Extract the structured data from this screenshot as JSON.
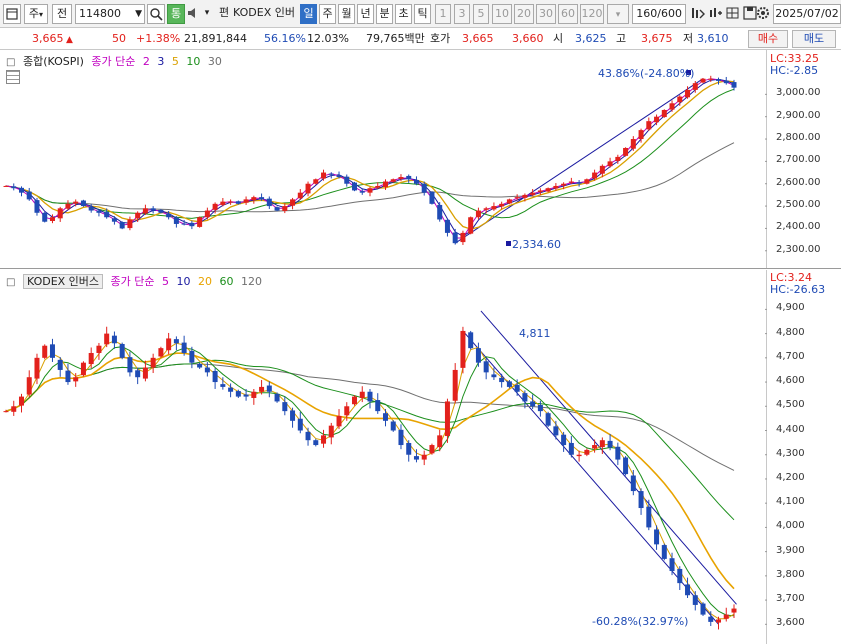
{
  "toolbar": {
    "market": "주",
    "period_type": "전",
    "stock_code": "114800",
    "tong": "통",
    "pyeon": "편",
    "stock_name": "KODEX 인버",
    "periods": [
      "일",
      "주",
      "월",
      "년",
      "분",
      "초",
      "틱"
    ],
    "active_period": "일",
    "intervals": [
      "1",
      "3",
      "5",
      "10",
      "20",
      "30",
      "60",
      "120"
    ],
    "count": "160/600",
    "date": "2025/07/02"
  },
  "quote": {
    "price": "3,665",
    "change_arrow": "▲",
    "change": "50",
    "change_pct": "+1.38%",
    "volume": "21,891,844",
    "ratio1": "56.16%",
    "ratio2": "12.03%",
    "amount": "79,765백만",
    "ask_label": "호가",
    "ask": "3,665",
    "bid": "3,660",
    "open_label": "시",
    "open": "3,625",
    "high_label": "고",
    "high": "3,675",
    "low_label": "저",
    "low": "3,610",
    "buy_label": "매수",
    "sell_label": "매도"
  },
  "panel1": {
    "name": "종합(KOSPI)",
    "ma_label": "종가 단순",
    "ma_periods": [
      "2",
      "3",
      "5",
      "10",
      "30"
    ],
    "lc": "LC:33.25",
    "hc": "HC:-2.85",
    "y_ticks": [
      "3,000.00",
      "2,900.00",
      "2,800.00",
      "2,700.00",
      "2,600.00",
      "2,500.00",
      "2,400.00",
      "2,300.00"
    ],
    "annotation_high": "43.86%(-24.80%)",
    "annotation_low": "2,334.60"
  },
  "panel2": {
    "name": "KODEX 인버스",
    "ma_label": "종가 단순",
    "ma_periods": [
      "5",
      "10",
      "20",
      "60",
      "120"
    ],
    "lc": "LC:3.24",
    "hc": "HC:-26.63",
    "y_ticks": [
      "4,900",
      "4,800",
      "4,700",
      "4,600",
      "4,500",
      "4,400",
      "4,300",
      "4,200",
      "4,100",
      "4,000",
      "3,900",
      "3,800",
      "3,700",
      "3,600"
    ],
    "annotation_high": "4,811",
    "annotation_low": "-60.28%(32.97%)"
  },
  "colors": {
    "up": "#e2211c",
    "down": "#1f4bb4",
    "ma2": "#c000c0",
    "ma3": "#1a1aa0",
    "ma5": "#d9a000",
    "ma10": "#1c8f1c",
    "ma30": "#707070",
    "ma20": "#e8a300",
    "ma60": "#1c8f1c",
    "ma120": "#707070"
  },
  "chart_data": [
    {
      "type": "candlestick",
      "title": "종합(KOSPI)",
      "ylim": [
        2290,
        3100
      ],
      "y_ticks": [
        3000,
        2900,
        2800,
        2700,
        2600,
        2500,
        2400,
        2300
      ],
      "series_close": [
        2590,
        2580,
        2560,
        2530,
        2470,
        2430,
        2450,
        2490,
        2510,
        2520,
        2500,
        2480,
        2470,
        2450,
        2430,
        2400,
        2440,
        2470,
        2490,
        2480,
        2470,
        2450,
        2420,
        2420,
        2410,
        2450,
        2480,
        2510,
        2520,
        2520,
        2510,
        2530,
        2540,
        2530,
        2500,
        2480,
        2500,
        2530,
        2560,
        2600,
        2620,
        2650,
        2640,
        2630,
        2600,
        2570,
        2560,
        2580,
        2590,
        2610,
        2620,
        2630,
        2620,
        2600,
        2560,
        2510,
        2440,
        2380,
        2334,
        2380,
        2450,
        2480,
        2490,
        2500,
        2510,
        2530,
        2540,
        2550,
        2560,
        2570,
        2580,
        2590,
        2600,
        2610,
        2600,
        2620,
        2650,
        2680,
        2700,
        2720,
        2760,
        2800,
        2840,
        2880,
        2900,
        2930,
        2960,
        2990,
        3020,
        3050,
        3070,
        3070,
        3060,
        3050,
        3030
      ]
    },
    {
      "type": "candlestick",
      "title": "KODEX 인버스",
      "ylim": [
        3560,
        4980
      ],
      "y_ticks": [
        4900,
        4800,
        4700,
        4600,
        4500,
        4400,
        4300,
        4200,
        4100,
        4000,
        3900,
        3800,
        3700,
        3600
      ],
      "series_close": [
        4480,
        4500,
        4540,
        4620,
        4700,
        4750,
        4700,
        4650,
        4600,
        4620,
        4680,
        4720,
        4750,
        4800,
        4760,
        4700,
        4640,
        4620,
        4660,
        4700,
        4740,
        4780,
        4760,
        4720,
        4680,
        4660,
        4640,
        4600,
        4580,
        4560,
        4540,
        4540,
        4560,
        4580,
        4560,
        4520,
        4480,
        4440,
        4400,
        4360,
        4340,
        4380,
        4420,
        4460,
        4500,
        4540,
        4560,
        4520,
        4480,
        4440,
        4400,
        4340,
        4300,
        4280,
        4300,
        4340,
        4380,
        4520,
        4650,
        4811,
        4740,
        4680,
        4640,
        4620,
        4600,
        4580,
        4560,
        4520,
        4500,
        4480,
        4420,
        4380,
        4340,
        4300,
        4300,
        4320,
        4340,
        4360,
        4330,
        4280,
        4220,
        4150,
        4080,
        4000,
        3930,
        3870,
        3820,
        3770,
        3720,
        3680,
        3640,
        3610,
        3620,
        3640,
        3665
      ]
    }
  ]
}
